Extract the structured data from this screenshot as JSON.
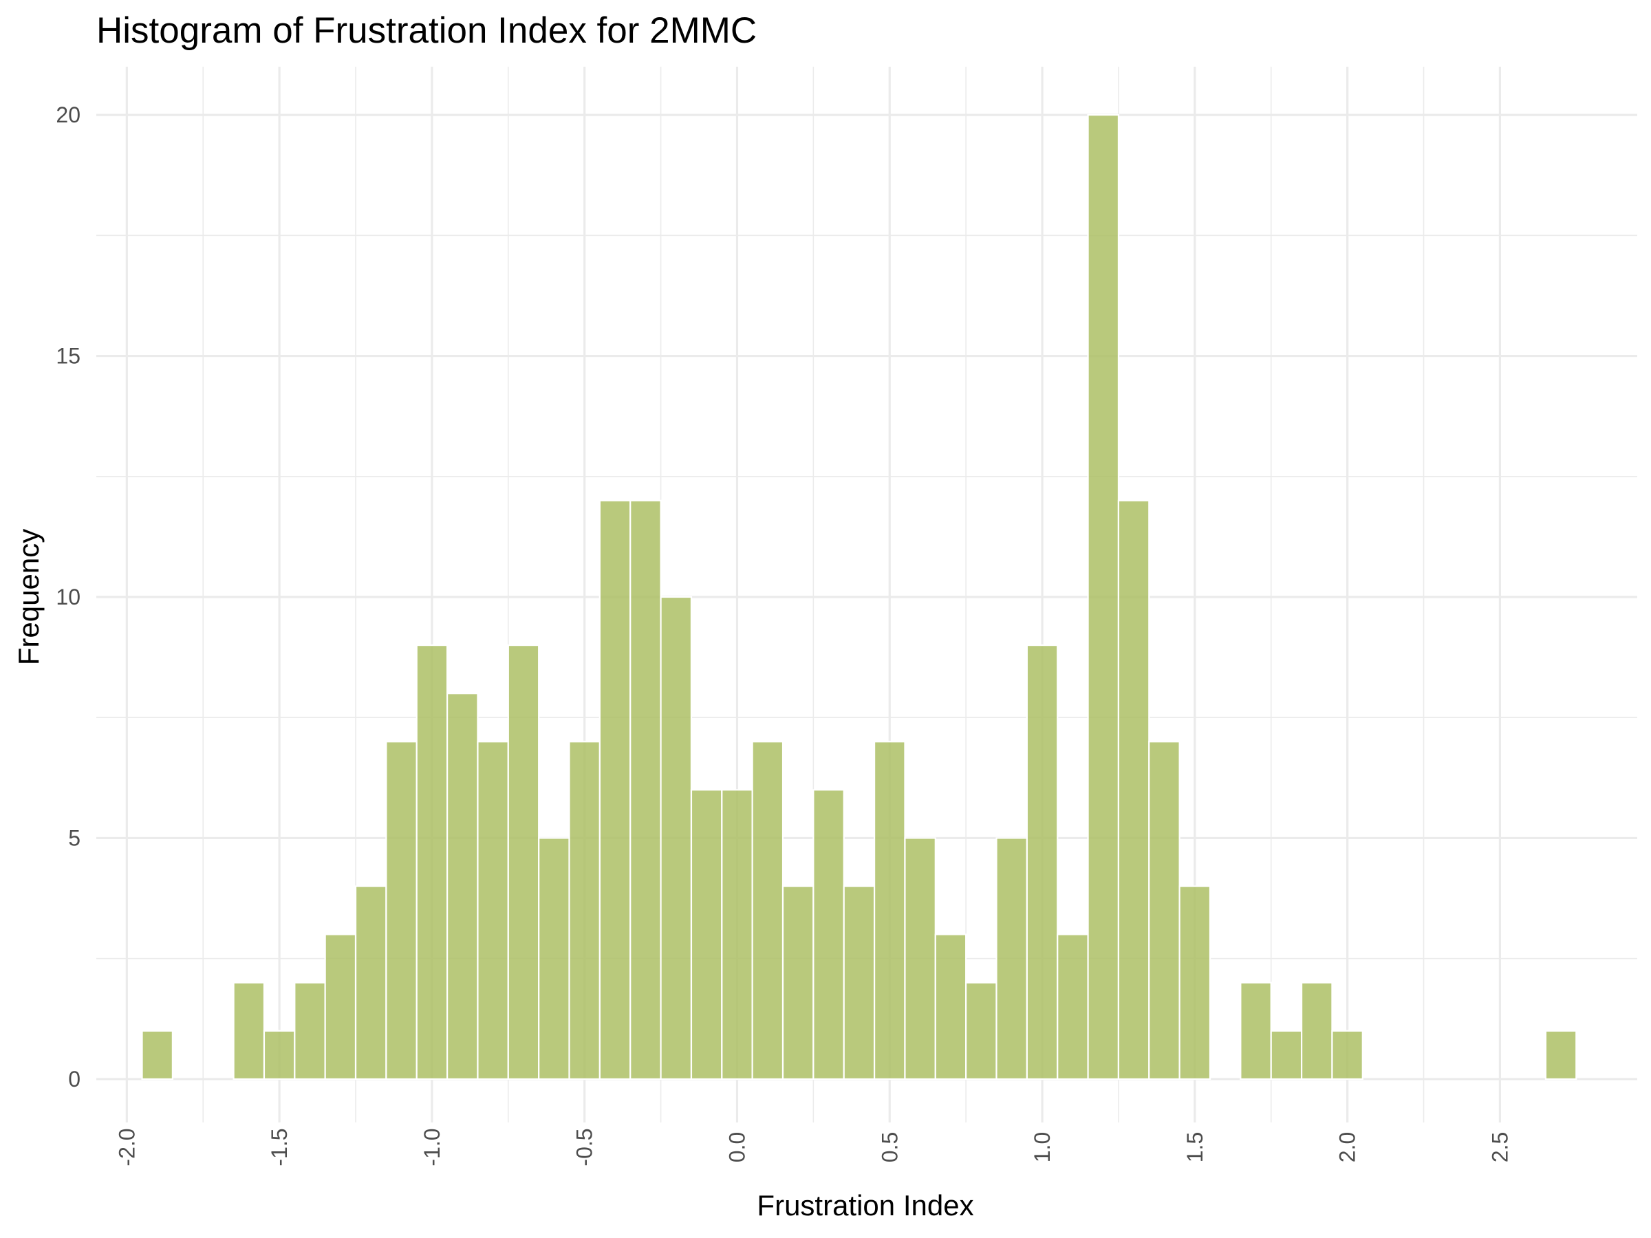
{
  "chart_data": {
    "type": "bar",
    "title": "Histogram of Frustration Index for 2MMC",
    "xlabel": "Frustration Index",
    "ylabel": "Frequency",
    "xlim": [
      -2.1,
      2.95
    ],
    "ylim": [
      -0.9,
      21.0
    ],
    "x_ticks": [
      -2.0,
      -1.5,
      -1.0,
      -0.5,
      0.0,
      0.5,
      1.0,
      1.5,
      2.0,
      2.5
    ],
    "x_tick_labels": [
      "-2.0",
      "-1.5",
      "-1.0",
      "-0.5",
      "0.0",
      "0.5",
      "1.0",
      "1.5",
      "2.0",
      "2.5"
    ],
    "y_ticks": [
      0,
      5,
      10,
      15,
      20
    ],
    "y_tick_labels": [
      "0",
      "5",
      "10",
      "15",
      "20"
    ],
    "grid": true,
    "bar_color": "#aabd5f",
    "bin_width": 0.1,
    "bins": [
      {
        "center": -1.9,
        "count": 1
      },
      {
        "center": -1.8,
        "count": 0
      },
      {
        "center": -1.7,
        "count": 0
      },
      {
        "center": -1.6,
        "count": 2
      },
      {
        "center": -1.5,
        "count": 1
      },
      {
        "center": -1.4,
        "count": 2
      },
      {
        "center": -1.3,
        "count": 3
      },
      {
        "center": -1.2,
        "count": 4
      },
      {
        "center": -1.1,
        "count": 7
      },
      {
        "center": -1.0,
        "count": 9
      },
      {
        "center": -0.9,
        "count": 8
      },
      {
        "center": -0.8,
        "count": 7
      },
      {
        "center": -0.7,
        "count": 9
      },
      {
        "center": -0.6,
        "count": 5
      },
      {
        "center": -0.5,
        "count": 7
      },
      {
        "center": -0.4,
        "count": 12
      },
      {
        "center": -0.3,
        "count": 12
      },
      {
        "center": -0.2,
        "count": 10
      },
      {
        "center": -0.1,
        "count": 6
      },
      {
        "center": 0.0,
        "count": 6
      },
      {
        "center": 0.1,
        "count": 7
      },
      {
        "center": 0.2,
        "count": 4
      },
      {
        "center": 0.3,
        "count": 6
      },
      {
        "center": 0.4,
        "count": 4
      },
      {
        "center": 0.5,
        "count": 7
      },
      {
        "center": 0.6,
        "count": 5
      },
      {
        "center": 0.7,
        "count": 3
      },
      {
        "center": 0.8,
        "count": 2
      },
      {
        "center": 0.9,
        "count": 5
      },
      {
        "center": 1.0,
        "count": 9
      },
      {
        "center": 1.1,
        "count": 3
      },
      {
        "center": 1.2,
        "count": 20
      },
      {
        "center": 1.3,
        "count": 12
      },
      {
        "center": 1.4,
        "count": 7
      },
      {
        "center": 1.5,
        "count": 4
      },
      {
        "center": 1.6,
        "count": 0
      },
      {
        "center": 1.7,
        "count": 2
      },
      {
        "center": 1.8,
        "count": 1
      },
      {
        "center": 1.9,
        "count": 2
      },
      {
        "center": 2.0,
        "count": 1
      },
      {
        "center": 2.1,
        "count": 0
      },
      {
        "center": 2.2,
        "count": 0
      },
      {
        "center": 2.3,
        "count": 0
      },
      {
        "center": 2.4,
        "count": 0
      },
      {
        "center": 2.5,
        "count": 0
      },
      {
        "center": 2.6,
        "count": 0
      },
      {
        "center": 2.7,
        "count": 1
      }
    ]
  }
}
